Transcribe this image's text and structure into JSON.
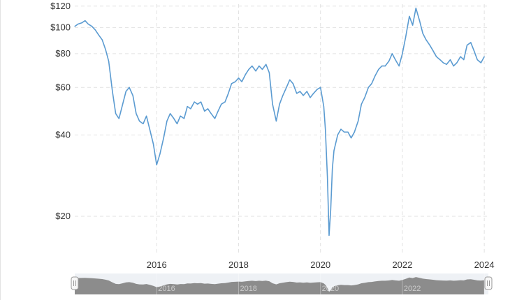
{
  "chart_data": {
    "type": "line",
    "scale": "log",
    "grid": true,
    "ylim": [
      14.5,
      122
    ],
    "xlim": [
      2014.0,
      2024.1
    ],
    "y_ticks": [
      {
        "value": 120,
        "label": "$120"
      },
      {
        "value": 100,
        "label": "$100"
      },
      {
        "value": 80,
        "label": "$80"
      },
      {
        "value": 60,
        "label": "$60"
      },
      {
        "value": 40,
        "label": "$40"
      },
      {
        "value": 20,
        "label": "$20"
      }
    ],
    "x_ticks": [
      {
        "value": 2016,
        "label": "2016"
      },
      {
        "value": 2018,
        "label": "2018"
      },
      {
        "value": 2020,
        "label": "2020"
      },
      {
        "value": 2022,
        "label": "2022"
      },
      {
        "value": 2024,
        "label": "2024"
      }
    ],
    "navigator_ticks": [
      "2016",
      "2018",
      "2020",
      "2022",
      "2024"
    ],
    "series": [
      {
        "color": "#5b9bd1",
        "x": [
          2014.0,
          2014.08,
          2014.17,
          2014.25,
          2014.33,
          2014.42,
          2014.5,
          2014.58,
          2014.67,
          2014.75,
          2014.83,
          2014.92,
          2015.0,
          2015.08,
          2015.17,
          2015.25,
          2015.33,
          2015.42,
          2015.5,
          2015.58,
          2015.67,
          2015.75,
          2015.83,
          2015.92,
          2016.0,
          2016.08,
          2016.17,
          2016.25,
          2016.33,
          2016.42,
          2016.5,
          2016.58,
          2016.67,
          2016.75,
          2016.83,
          2016.92,
          2017.0,
          2017.08,
          2017.17,
          2017.25,
          2017.33,
          2017.42,
          2017.5,
          2017.58,
          2017.67,
          2017.75,
          2017.83,
          2017.92,
          2018.0,
          2018.08,
          2018.17,
          2018.25,
          2018.33,
          2018.42,
          2018.5,
          2018.58,
          2018.67,
          2018.75,
          2018.83,
          2018.92,
          2019.0,
          2019.08,
          2019.17,
          2019.25,
          2019.33,
          2019.42,
          2019.5,
          2019.58,
          2019.67,
          2019.75,
          2019.83,
          2019.92,
          2020.0,
          2020.08,
          2020.12,
          2020.17,
          2020.21,
          2020.25,
          2020.29,
          2020.33,
          2020.42,
          2020.5,
          2020.58,
          2020.67,
          2020.75,
          2020.83,
          2020.92,
          2021.0,
          2021.08,
          2021.17,
          2021.25,
          2021.33,
          2021.42,
          2021.5,
          2021.58,
          2021.67,
          2021.75,
          2021.83,
          2021.92,
          2022.0,
          2022.08,
          2022.17,
          2022.25,
          2022.33,
          2022.42,
          2022.5,
          2022.58,
          2022.67,
          2022.75,
          2022.83,
          2022.92,
          2023.0,
          2023.08,
          2023.17,
          2023.25,
          2023.33,
          2023.42,
          2023.5,
          2023.58,
          2023.67,
          2023.75,
          2023.83,
          2023.92,
          2024.0
        ],
        "y": [
          101,
          103,
          104,
          106,
          103,
          101,
          98,
          94,
          90,
          83,
          75,
          58,
          48,
          46,
          52,
          58,
          60,
          56,
          48,
          45,
          44,
          47,
          42,
          37,
          31,
          34,
          39,
          45,
          48,
          46,
          44,
          47,
          46,
          51,
          50,
          53,
          52,
          53,
          49,
          50,
          48,
          46,
          49,
          52,
          53,
          57,
          62,
          63,
          65,
          63,
          67,
          70,
          72,
          69,
          72,
          70,
          73,
          68,
          52,
          45,
          52,
          56,
          60,
          64,
          62,
          57,
          58,
          56,
          58,
          55,
          57,
          59,
          60,
          51,
          42,
          28,
          17,
          21,
          30,
          35,
          40,
          42,
          41,
          41,
          39,
          41,
          45,
          52,
          55,
          60,
          62,
          66,
          70,
          72,
          72,
          75,
          80,
          76,
          72,
          80,
          92,
          110,
          102,
          118,
          106,
          95,
          90,
          86,
          82,
          78,
          76,
          74,
          73,
          76,
          72,
          74,
          78,
          76,
          86,
          88,
          82,
          76,
          74,
          78
        ]
      }
    ]
  },
  "navigator": {
    "range_start": 2014.0,
    "range_end": 2024.1
  }
}
